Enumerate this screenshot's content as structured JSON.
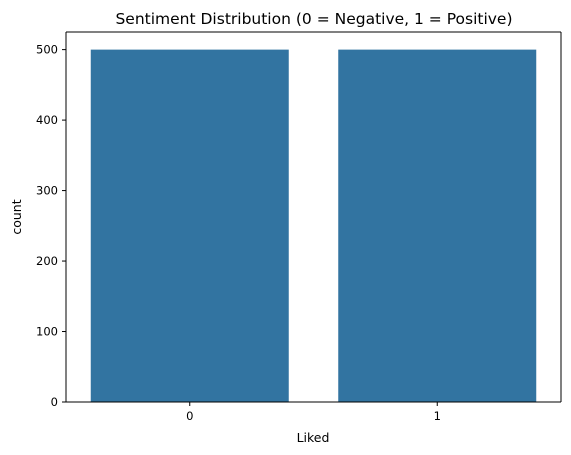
{
  "chart_data": {
    "type": "bar",
    "title": "Sentiment Distribution (0 = Negative, 1 = Positive)",
    "xlabel": "Liked",
    "ylabel": "count",
    "categories": [
      "0",
      "1"
    ],
    "values": [
      500,
      500
    ],
    "ylim": [
      0,
      525
    ],
    "yticks": [
      0,
      100,
      200,
      300,
      400,
      500
    ],
    "grid": false,
    "bar_color": "#3274a1"
  }
}
